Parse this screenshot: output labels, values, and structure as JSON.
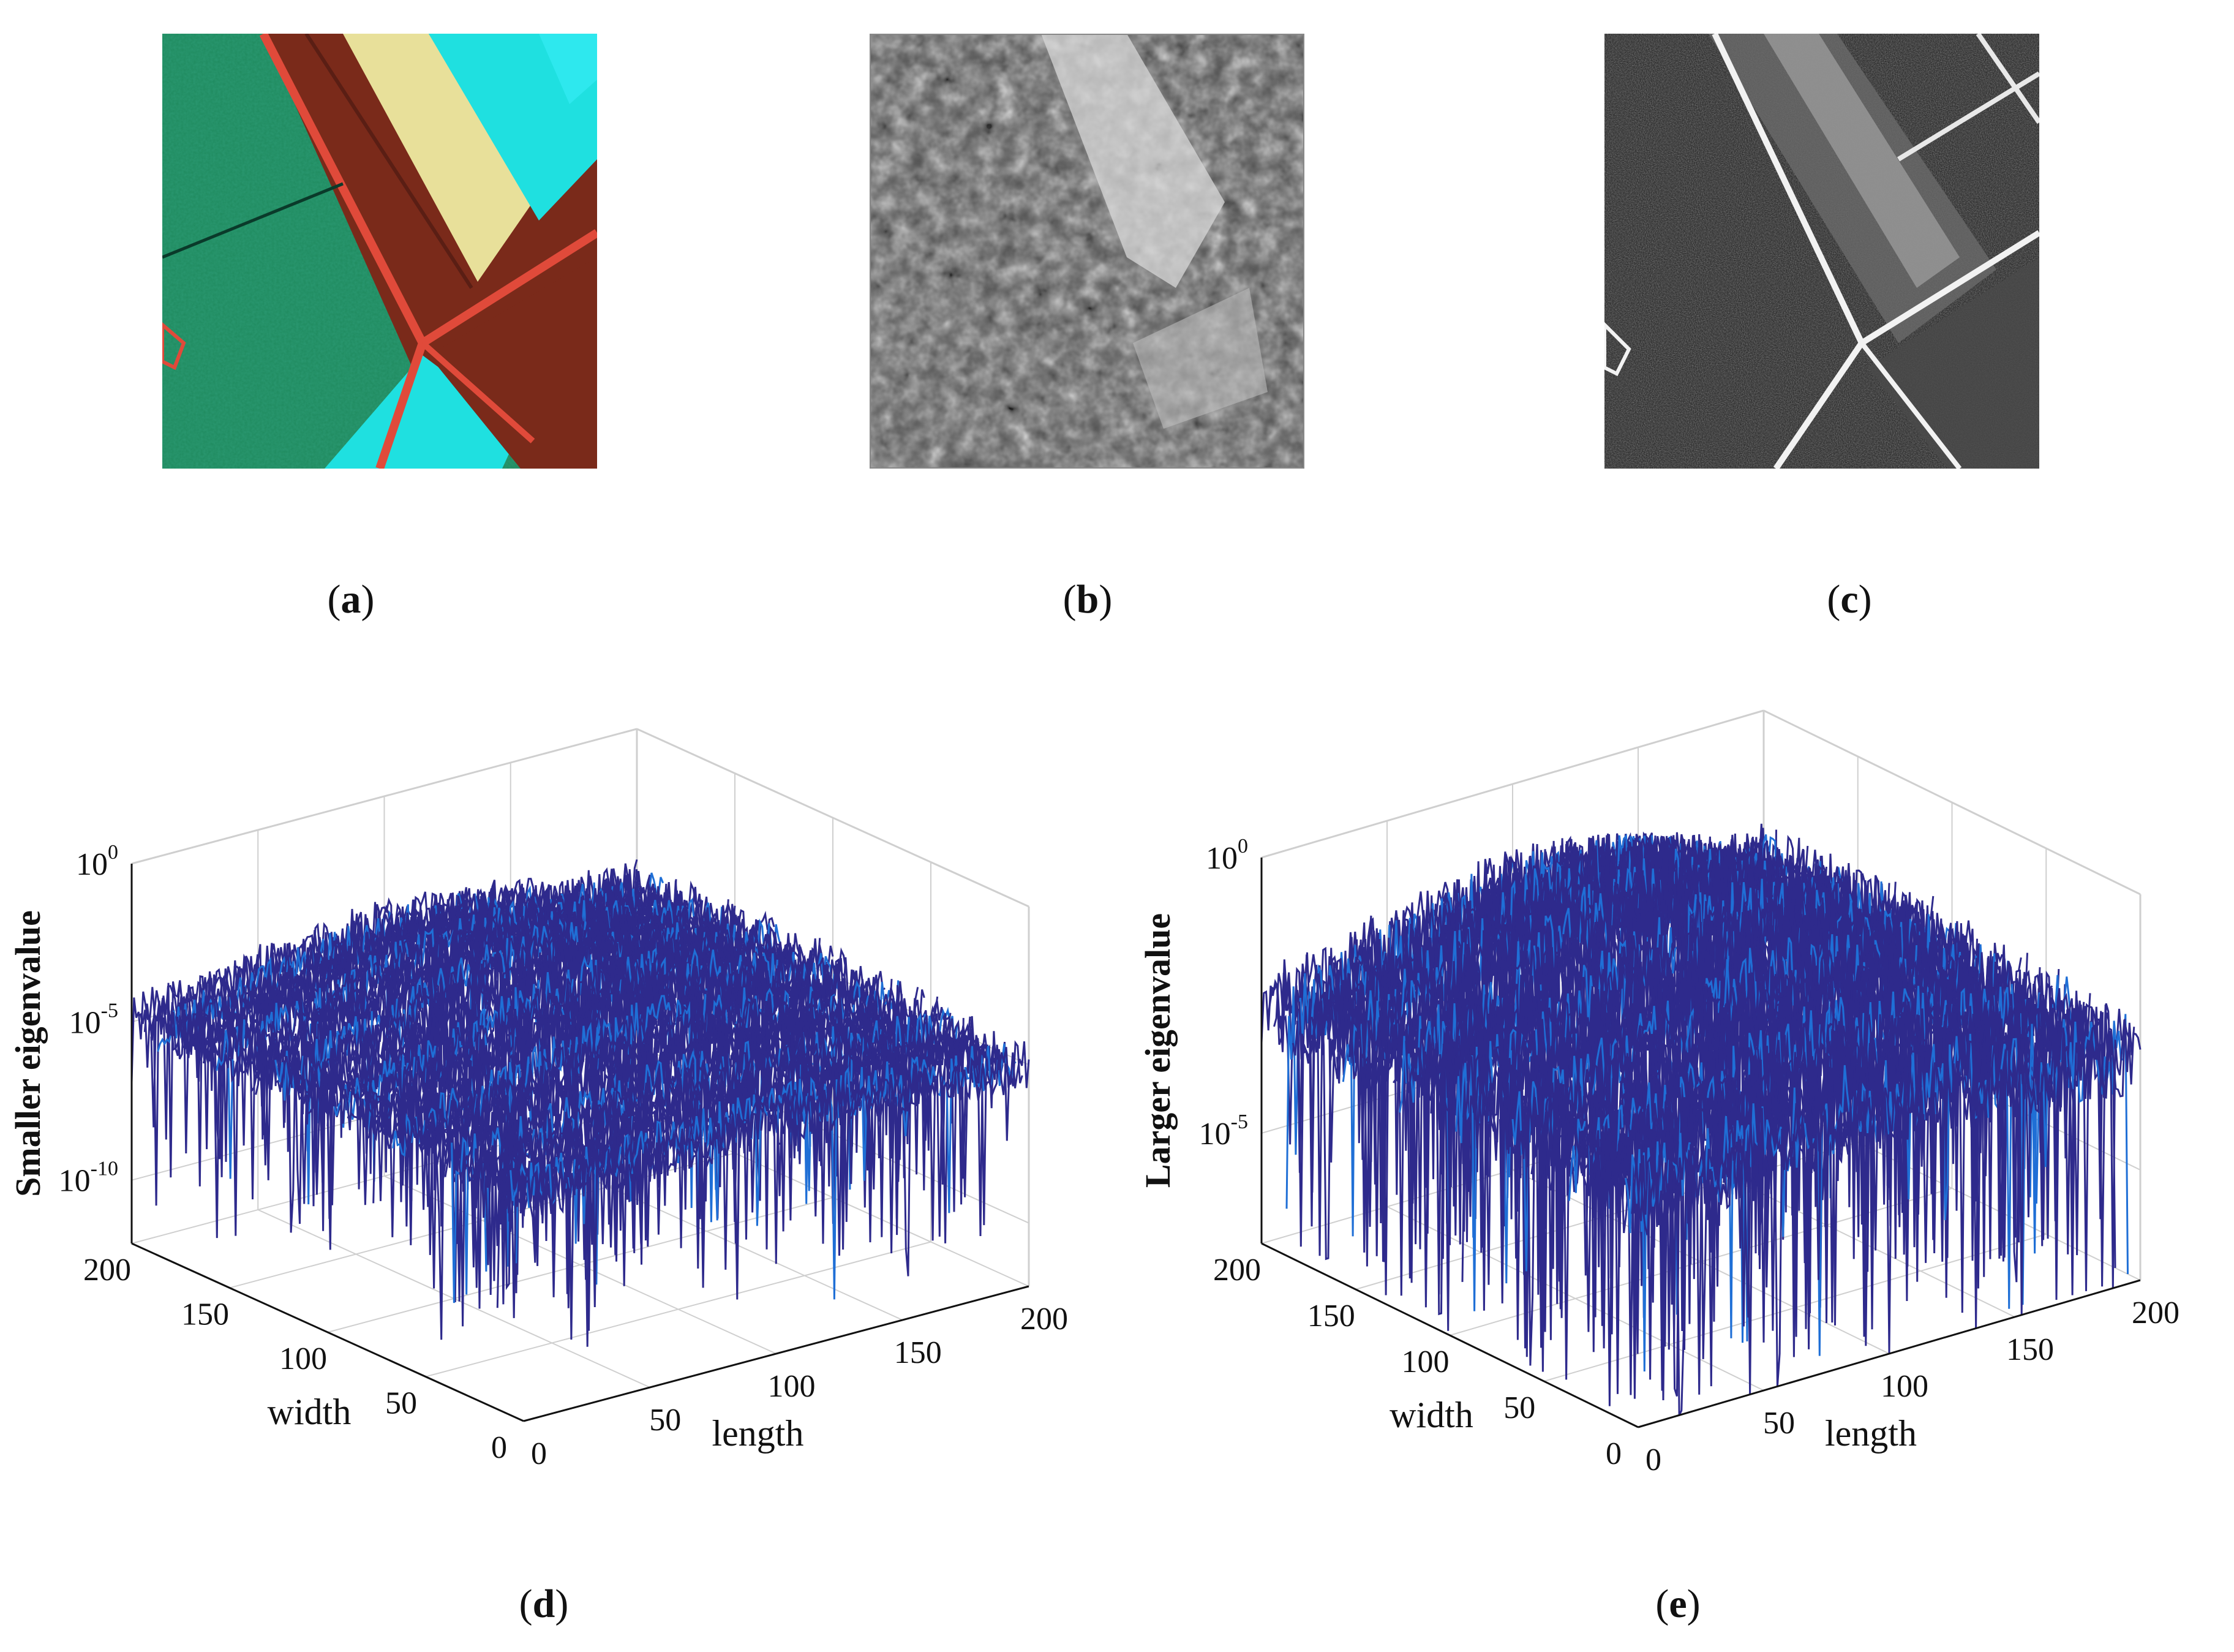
{
  "panels": [
    {
      "id": "a",
      "label": "a",
      "kind": "image",
      "description": "false-color hyperspectral image"
    },
    {
      "id": "b",
      "label": "b",
      "kind": "image"
    },
    {
      "id": "c",
      "label": "c",
      "kind": "image"
    }
  ],
  "captions": {
    "a": "a",
    "b": "b",
    "c": "c",
    "d": "d",
    "e": "e"
  },
  "colors": {
    "surface_dark": "#2e2a8c",
    "surface_light": "#1f6fd6",
    "green_field": "#1f8a5e",
    "cyan_field": "#1fe0e0",
    "brown_field": "#7a2a1a",
    "road": "#e04a3a",
    "yellow_strip": "#e8e09a"
  },
  "chart_data": [
    {
      "type": "surface",
      "panel": "d",
      "xlabel": "length",
      "ylabel": "width",
      "zlabel": "Smaller eigenvalue",
      "x_ticks": [
        "0",
        "50",
        "100",
        "150",
        "200"
      ],
      "y_ticks": [
        "0",
        "50",
        "100",
        "150",
        "200"
      ],
      "z_scale": "log",
      "z_ticks": [
        {
          "base": "10",
          "exp": "0",
          "value": 1
        },
        {
          "base": "10",
          "exp": "-5",
          "value": 1e-05
        },
        {
          "base": "10",
          "exp": "-10",
          "value": 1e-10
        }
      ],
      "xlim": [
        0,
        200
      ],
      "ylim": [
        0,
        200
      ],
      "zlim_log10": [
        -12,
        0
      ],
      "grid": true
    },
    {
      "type": "surface",
      "panel": "e",
      "xlabel": "length",
      "ylabel": "width",
      "zlabel": "Larger eigenvalue",
      "x_ticks": [
        "0",
        "50",
        "100",
        "150",
        "200"
      ],
      "y_ticks": [
        "0",
        "50",
        "100",
        "150",
        "200"
      ],
      "z_scale": "log",
      "z_ticks": [
        {
          "base": "10",
          "exp": "0",
          "value": 1
        },
        {
          "base": "10",
          "exp": "-5",
          "value": 1e-05
        }
      ],
      "xlim": [
        0,
        200
      ],
      "ylim": [
        0,
        200
      ],
      "zlim_log10": [
        -7,
        0
      ],
      "grid": true
    }
  ]
}
